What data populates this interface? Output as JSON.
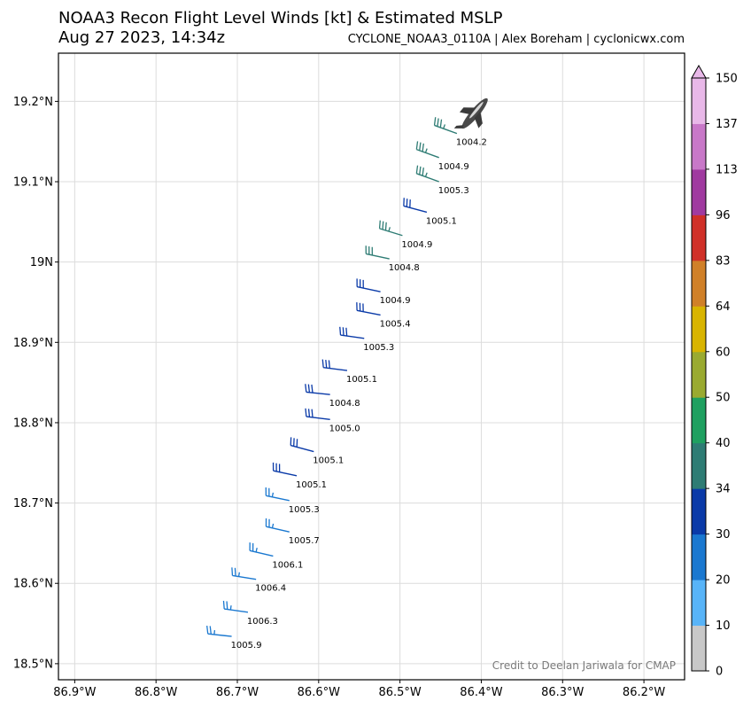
{
  "header": {
    "title": "NOAA3 Recon Flight Level Winds [kt] & Estimated MSLP",
    "subtitle": "Aug 27 2023, 14:34z",
    "source": "CYCLONE_NOAA3_0110A | Alex Boreham | cyclonicwx.com"
  },
  "credit": "Credit to Deelan Jariwala for CMAP",
  "chart_data": {
    "type": "scatter",
    "title": "NOAA3 Recon Flight Level Winds [kt] & Estimated MSLP",
    "xlim": [
      -86.92,
      -86.15
    ],
    "ylim": [
      18.48,
      19.26
    ],
    "x_ticks": [
      -86.9,
      -86.8,
      -86.7,
      -86.6,
      -86.5,
      -86.4,
      -86.3,
      -86.2
    ],
    "x_tick_labels": [
      "86.9°W",
      "86.8°W",
      "86.7°W",
      "86.6°W",
      "86.5°W",
      "86.4°W",
      "86.3°W",
      "86.2°W"
    ],
    "y_ticks": [
      18.5,
      18.6,
      18.7,
      18.8,
      18.9,
      19.0,
      19.1,
      19.2
    ],
    "y_tick_labels": [
      "18.5°N",
      "18.6°N",
      "18.7°N",
      "18.8°N",
      "18.9°N",
      "19N",
      "19.1°N",
      "19.2°N"
    ],
    "grid": true,
    "colorbar": {
      "ticks": [
        0,
        10,
        20,
        30,
        34,
        40,
        50,
        60,
        64,
        83,
        96,
        113,
        137,
        150
      ],
      "tick_labels": [
        "0",
        "10",
        "20",
        "30",
        "34",
        "40",
        "50",
        "60",
        "64",
        "83",
        "96",
        "113",
        "137",
        "150"
      ],
      "colors": [
        "#c8c8c8",
        "#58b4f8",
        "#1a78d0",
        "#0a3aa8",
        "#2e7c74",
        "#1fa060",
        "#9aaa30",
        "#d8b400",
        "#d08028",
        "#d03028",
        "#a03aa0",
        "#c878c8",
        "#e8b8e8"
      ]
    },
    "observations": [
      {
        "lon": -86.43,
        "lat": 19.16,
        "mslp": "1004.2",
        "wind_kt": 38,
        "dir_deg": 290
      },
      {
        "lon": -86.452,
        "lat": 19.13,
        "mslp": "1004.9",
        "wind_kt": 35,
        "dir_deg": 290
      },
      {
        "lon": -86.452,
        "lat": 19.1,
        "mslp": "1005.3",
        "wind_kt": 35,
        "dir_deg": 290
      },
      {
        "lon": -86.467,
        "lat": 19.062,
        "mslp": "1005.1",
        "wind_kt": 32,
        "dir_deg": 285
      },
      {
        "lon": -86.497,
        "lat": 19.033,
        "mslp": "1004.9",
        "wind_kt": 35,
        "dir_deg": 287
      },
      {
        "lon": -86.513,
        "lat": 19.004,
        "mslp": "1004.8",
        "wind_kt": 34,
        "dir_deg": 282
      },
      {
        "lon": -86.524,
        "lat": 18.963,
        "mslp": "1004.9",
        "wind_kt": 32,
        "dir_deg": 282
      },
      {
        "lon": -86.524,
        "lat": 18.934,
        "mslp": "1005.4",
        "wind_kt": 32,
        "dir_deg": 281
      },
      {
        "lon": -86.544,
        "lat": 18.905,
        "mslp": "1005.3",
        "wind_kt": 32,
        "dir_deg": 278
      },
      {
        "lon": -86.565,
        "lat": 18.865,
        "mslp": "1005.1",
        "wind_kt": 31,
        "dir_deg": 277
      },
      {
        "lon": -86.586,
        "lat": 18.835,
        "mslp": "1004.8",
        "wind_kt": 31,
        "dir_deg": 276
      },
      {
        "lon": -86.586,
        "lat": 18.804,
        "mslp": "1005.0",
        "wind_kt": 31,
        "dir_deg": 277
      },
      {
        "lon": -86.606,
        "lat": 18.764,
        "mslp": "1005.1",
        "wind_kt": 30,
        "dir_deg": 285
      },
      {
        "lon": -86.627,
        "lat": 18.734,
        "mslp": "1005.1",
        "wind_kt": 30,
        "dir_deg": 282
      },
      {
        "lon": -86.636,
        "lat": 18.703,
        "mslp": "1005.3",
        "wind_kt": 27,
        "dir_deg": 282
      },
      {
        "lon": -86.636,
        "lat": 18.664,
        "mslp": "1005.7",
        "wind_kt": 26,
        "dir_deg": 283
      },
      {
        "lon": -86.656,
        "lat": 18.634,
        "mslp": "1006.1",
        "wind_kt": 26,
        "dir_deg": 283
      },
      {
        "lon": -86.677,
        "lat": 18.605,
        "mslp": "1006.4",
        "wind_kt": 26,
        "dir_deg": 279
      },
      {
        "lon": -86.687,
        "lat": 18.564,
        "mslp": "1006.3",
        "wind_kt": 26,
        "dir_deg": 278
      },
      {
        "lon": -86.707,
        "lat": 18.534,
        "mslp": "1005.9",
        "wind_kt": 25,
        "dir_deg": 276
      }
    ]
  }
}
